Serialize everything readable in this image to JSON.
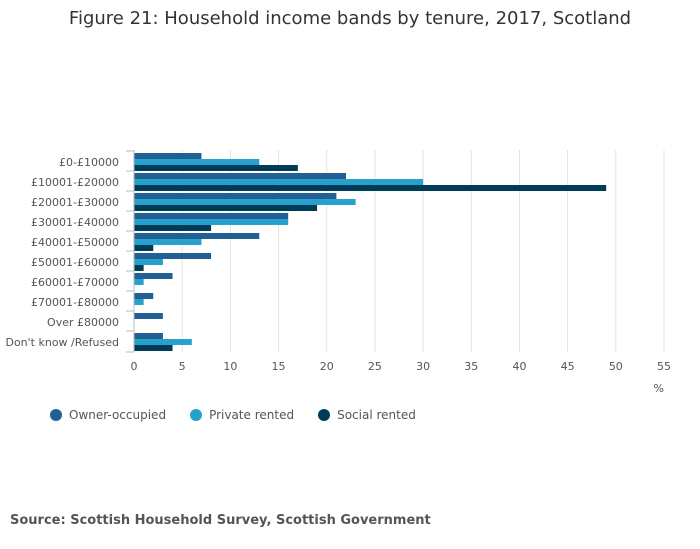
{
  "chart_data": {
    "type": "bar",
    "orientation": "horizontal",
    "title": "Figure 21: Household income bands by tenure, 2017, Scotland",
    "xlabel": "%",
    "ylabel": "",
    "xlim": [
      0,
      55
    ],
    "xticks": [
      0,
      5,
      10,
      15,
      20,
      25,
      30,
      35,
      40,
      45,
      50,
      55
    ],
    "grid": true,
    "legend_position": "bottom-left",
    "categories": [
      "£0-£10000",
      "£10001-£20000",
      "£20001-£30000",
      "£30001-£40000",
      "£40001-£50000",
      "£50001-£60000",
      "£60001-£70000",
      "£70001-£80000",
      "Over £80000",
      "Don't know /Refused"
    ],
    "series": [
      {
        "name": "Owner-occupied",
        "color": "#206095",
        "values": [
          7,
          22,
          21,
          16,
          13,
          8,
          4,
          2,
          3,
          3
        ]
      },
      {
        "name": "Private rented",
        "color": "#27a0cc",
        "values": [
          13,
          30,
          23,
          16,
          7,
          3,
          1,
          1,
          0,
          6
        ]
      },
      {
        "name": "Social rented",
        "color": "#003c57",
        "values": [
          17,
          49,
          19,
          8,
          2,
          1,
          0,
          0,
          0,
          4
        ]
      }
    ]
  },
  "source": "Source: Scottish Household Survey, Scottish Government"
}
